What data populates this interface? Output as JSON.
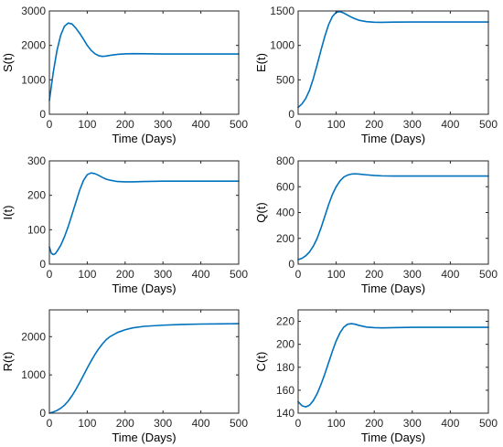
{
  "colors": {
    "line": "#0072BD",
    "axis": "#262626",
    "background": "#ffffff"
  },
  "chart_data": [
    {
      "type": "line",
      "xlabel": "Time (Days)",
      "ylabel": "S(t)",
      "xlim": [
        0,
        500
      ],
      "ylim": [
        0,
        3000
      ],
      "xticks": [
        "0",
        "100",
        "200",
        "300",
        "400",
        "500"
      ],
      "yticks": [
        "0",
        "1000",
        "2000",
        "3000"
      ],
      "x": [
        0,
        10,
        20,
        30,
        40,
        50,
        60,
        70,
        80,
        90,
        100,
        110,
        120,
        130,
        140,
        150,
        160,
        180,
        200,
        220,
        250,
        300,
        350,
        400,
        450,
        500
      ],
      "y": [
        400,
        1200,
        1850,
        2300,
        2560,
        2650,
        2620,
        2500,
        2350,
        2180,
        2000,
        1860,
        1760,
        1700,
        1680,
        1690,
        1710,
        1740,
        1755,
        1760,
        1757,
        1750,
        1750,
        1750,
        1750,
        1750
      ]
    },
    {
      "type": "line",
      "xlabel": "Time (Days)",
      "ylabel": "E(t)",
      "xlim": [
        0,
        500
      ],
      "ylim": [
        0,
        1500
      ],
      "xticks": [
        "0",
        "100",
        "200",
        "300",
        "400",
        "500"
      ],
      "yticks": [
        "0",
        "500",
        "1000",
        "1500"
      ],
      "x": [
        0,
        10,
        20,
        30,
        40,
        50,
        60,
        70,
        80,
        90,
        100,
        110,
        120,
        130,
        140,
        150,
        160,
        180,
        200,
        220,
        250,
        300,
        350,
        400,
        450,
        500
      ],
      "y": [
        100,
        150,
        230,
        350,
        520,
        720,
        930,
        1130,
        1300,
        1420,
        1480,
        1490,
        1470,
        1440,
        1410,
        1385,
        1365,
        1345,
        1337,
        1335,
        1338,
        1340,
        1340,
        1340,
        1340,
        1340
      ]
    },
    {
      "type": "line",
      "xlabel": "Time (Days)",
      "ylabel": "I(t)",
      "xlim": [
        0,
        500
      ],
      "ylim": [
        0,
        300
      ],
      "xticks": [
        "0",
        "100",
        "200",
        "300",
        "400",
        "500"
      ],
      "yticks": [
        "0",
        "100",
        "200",
        "300"
      ],
      "x": [
        0,
        5,
        10,
        15,
        20,
        30,
        40,
        50,
        60,
        70,
        80,
        90,
        100,
        110,
        120,
        130,
        140,
        150,
        160,
        180,
        200,
        220,
        250,
        300,
        350,
        400,
        450,
        500
      ],
      "y": [
        50,
        32,
        28,
        30,
        37,
        55,
        80,
        110,
        145,
        180,
        215,
        243,
        260,
        265,
        263,
        258,
        252,
        247,
        244,
        240,
        239,
        239,
        240,
        241,
        241,
        241,
        241,
        241
      ]
    },
    {
      "type": "line",
      "xlabel": "Time (Days)",
      "ylabel": "Q(t)",
      "xlim": [
        0,
        500
      ],
      "ylim": [
        0,
        800
      ],
      "xticks": [
        "0",
        "100",
        "200",
        "300",
        "400",
        "500"
      ],
      "yticks": [
        "0",
        "200",
        "400",
        "600",
        "800"
      ],
      "x": [
        0,
        10,
        20,
        30,
        40,
        50,
        60,
        70,
        80,
        90,
        100,
        110,
        120,
        130,
        140,
        150,
        160,
        180,
        200,
        220,
        250,
        300,
        350,
        400,
        450,
        500
      ],
      "y": [
        35,
        45,
        65,
        95,
        140,
        200,
        280,
        370,
        460,
        540,
        600,
        645,
        675,
        690,
        698,
        700,
        698,
        692,
        687,
        684,
        683,
        683,
        683,
        683,
        683,
        683
      ]
    },
    {
      "type": "line",
      "xlabel": "Time (Days)",
      "ylabel": "R(t)",
      "xlim": [
        0,
        500
      ],
      "ylim": [
        0,
        2700
      ],
      "xticks": [
        "0",
        "100",
        "200",
        "300",
        "400",
        "500"
      ],
      "yticks": [
        "0",
        "1000",
        "2000"
      ],
      "x": [
        0,
        10,
        20,
        30,
        40,
        50,
        60,
        70,
        80,
        90,
        100,
        110,
        120,
        130,
        140,
        150,
        160,
        180,
        200,
        220,
        250,
        300,
        350,
        400,
        450,
        500
      ],
      "y": [
        0,
        30,
        70,
        130,
        210,
        320,
        460,
        620,
        800,
        990,
        1180,
        1360,
        1530,
        1680,
        1810,
        1920,
        2000,
        2110,
        2180,
        2230,
        2270,
        2300,
        2320,
        2330,
        2335,
        2340
      ]
    },
    {
      "type": "line",
      "xlabel": "Time (Days)",
      "ylabel": "C(t)",
      "xlim": [
        0,
        500
      ],
      "ylim": [
        140,
        230
      ],
      "xticks": [
        "0",
        "100",
        "200",
        "300",
        "400",
        "500"
      ],
      "yticks": [
        "140",
        "160",
        "180",
        "200",
        "220"
      ],
      "x": [
        0,
        10,
        20,
        30,
        40,
        50,
        60,
        70,
        80,
        90,
        100,
        110,
        120,
        130,
        140,
        150,
        160,
        180,
        200,
        220,
        250,
        300,
        350,
        400,
        450,
        500
      ],
      "y": [
        150,
        146.5,
        145.5,
        147,
        151,
        157,
        165,
        174,
        184,
        194,
        203,
        210,
        215,
        217.5,
        218,
        217.5,
        216.5,
        215,
        214.5,
        214.3,
        214.5,
        214.8,
        214.8,
        214.8,
        214.8,
        214.8
      ]
    }
  ]
}
